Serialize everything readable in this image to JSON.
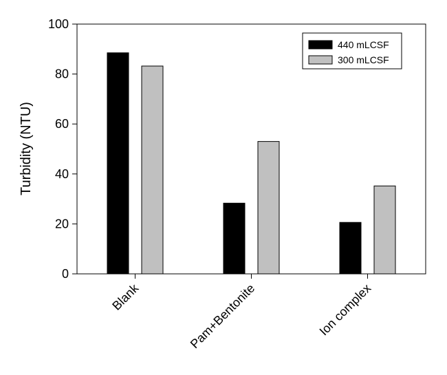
{
  "chart_data": {
    "type": "bar",
    "title": "",
    "xlabel": "",
    "ylabel": "Turbidity (NTU)",
    "categories": [
      "Blank",
      "Pam+Bentonite",
      "Ion complex"
    ],
    "series": [
      {
        "name": "440 mLCSF",
        "color": "#000000",
        "values": [
          88.5,
          28.3,
          20.6
        ]
      },
      {
        "name": "300 mLCSF",
        "color": "#c0c0c0",
        "values": [
          83.2,
          53.0,
          35.2
        ]
      }
    ],
    "ylim": [
      0,
      100
    ],
    "yticks": [
      0,
      20,
      40,
      60,
      80,
      100
    ],
    "grid": false,
    "legend_position": "top-right"
  }
}
